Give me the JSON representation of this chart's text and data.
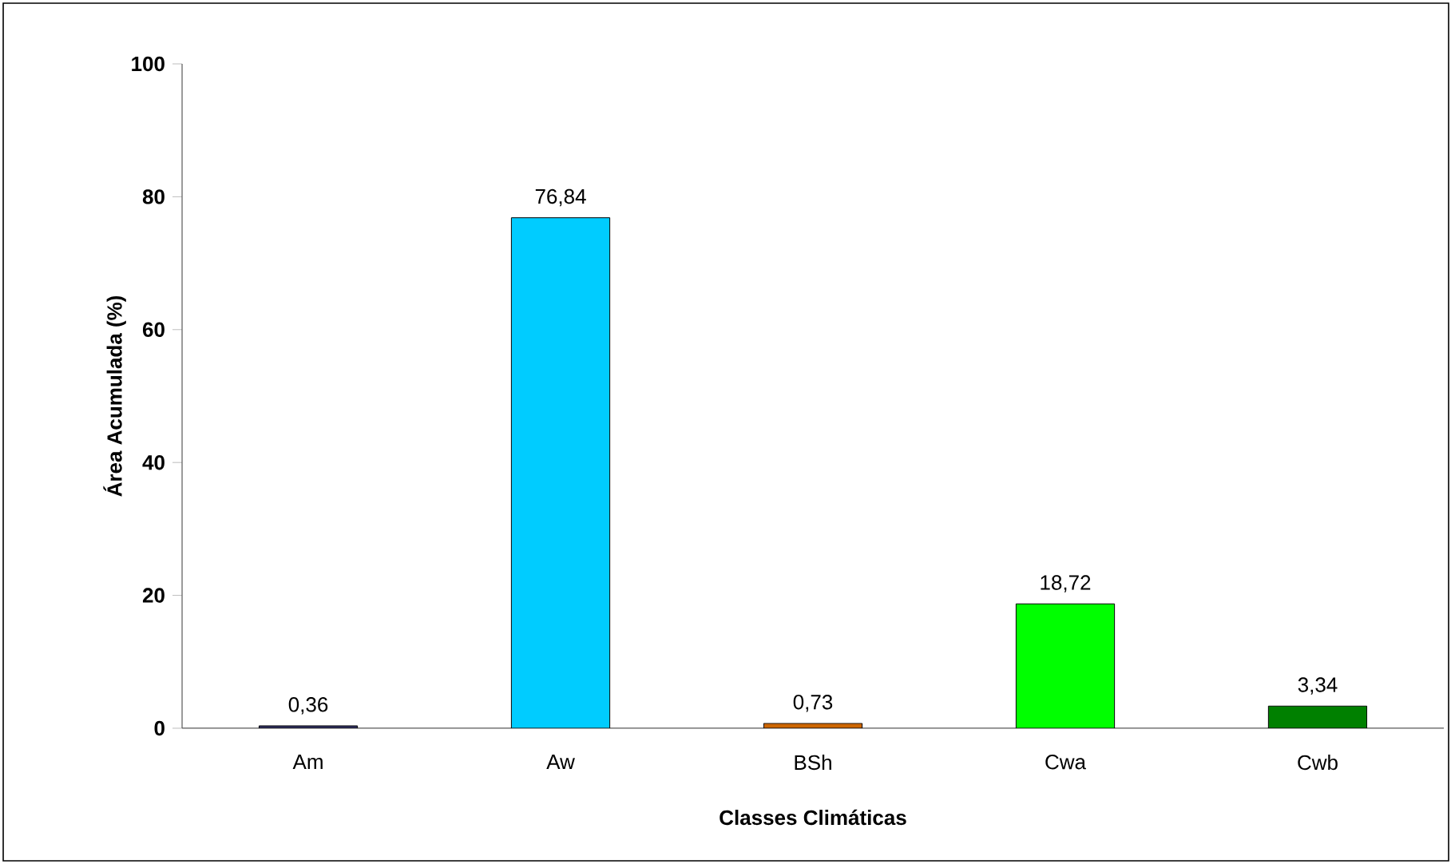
{
  "chart_data": {
    "type": "bar",
    "xlabel": "Classes Climáticas",
    "ylabel": "Área Acumulada (%)",
    "categories": [
      "Am",
      "Aw",
      "BSh",
      "Cwa",
      "Cwb"
    ],
    "values": [
      0.36,
      76.84,
      0.73,
      18.72,
      3.34
    ],
    "value_labels": [
      "0,36",
      "76,84",
      "0,73",
      "18,72",
      "3,34"
    ],
    "colors": [
      "#333366",
      "#00ccff",
      "#cc6600",
      "#00ff00",
      "#008000"
    ],
    "ylim": [
      0,
      100
    ],
    "yticks": [
      0,
      20,
      40,
      60,
      80,
      100
    ],
    "grid": false
  }
}
